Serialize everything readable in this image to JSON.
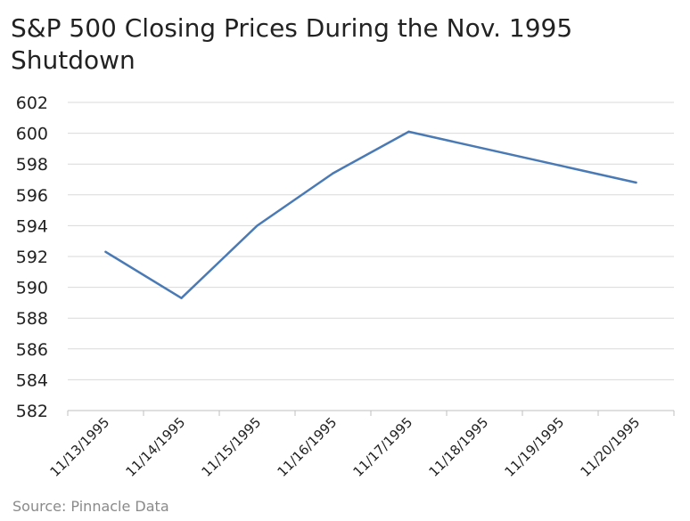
{
  "chart_data": {
    "type": "line",
    "title": "S&P 500 Closing Prices During the Nov. 1995 Shutdown",
    "xlabel": "",
    "ylabel": "",
    "categories": [
      "11/13/1995",
      "11/14/1995",
      "11/15/1995",
      "11/16/1995",
      "11/17/1995",
      "11/18/1995",
      "11/19/1995",
      "11/20/1995"
    ],
    "series": [
      {
        "values": [
          592.3,
          589.3,
          594.0,
          597.4,
          600.1,
          null,
          null,
          596.8
        ]
      }
    ],
    "ylim": [
      582,
      602
    ],
    "yticks": [
      582,
      584,
      586,
      588,
      590,
      592,
      594,
      596,
      598,
      600,
      602
    ],
    "grid": true,
    "line_color": "#4a7ab5",
    "grid_color": "#d9d9d9",
    "source": "Source: Pinnacle Data"
  }
}
